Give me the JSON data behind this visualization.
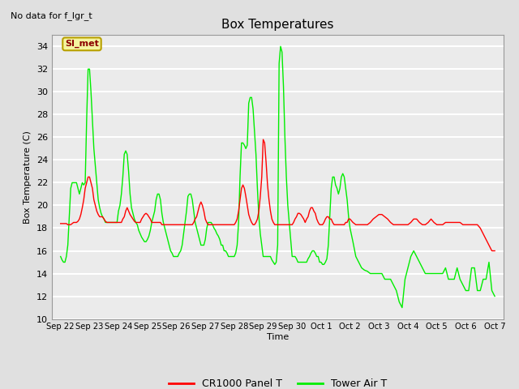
{
  "title": "Box Temperatures",
  "subtitle": "No data for f_lgr_t",
  "xlabel": "Time",
  "ylabel": "Box Temperature (C)",
  "ylim": [
    10,
    35
  ],
  "yticks": [
    10,
    12,
    14,
    16,
    18,
    20,
    22,
    24,
    26,
    28,
    30,
    32,
    34
  ],
  "background_color": "#e0e0e0",
  "plot_bg_color": "#f0f0f0",
  "legend_label1": "CR1000 Panel T",
  "legend_label2": "Tower Air T",
  "legend_color1": "red",
  "legend_color2": "#00ee00",
  "annotation_text": "SI_met",
  "x_tick_labels": [
    "Sep 22",
    "Sep 23",
    "Sep 24",
    "Sep 25",
    "Sep 26",
    "Sep 27",
    "Sep 28",
    "Sep 29",
    "Sep 30",
    "Oct 1",
    "Oct 2",
    "Oct 3",
    "Oct 4",
    "Oct 5",
    "Oct 6",
    "Oct 7"
  ],
  "red_x": [
    0.0,
    0.05,
    0.1,
    0.15,
    0.2,
    0.25,
    0.3,
    0.35,
    0.4,
    0.45,
    0.5,
    0.55,
    0.6,
    0.65,
    0.7,
    0.75,
    0.8,
    0.85,
    0.9,
    0.95,
    1.0,
    1.05,
    1.1,
    1.15,
    1.2,
    1.25,
    1.3,
    1.35,
    1.4,
    1.45,
    1.5,
    1.55,
    1.6,
    1.65,
    1.7,
    1.75,
    1.8,
    1.85,
    1.9,
    1.95,
    2.0,
    2.05,
    2.1,
    2.15,
    2.2,
    2.25,
    2.3,
    2.35,
    2.4,
    2.45,
    2.5,
    2.55,
    2.6,
    2.65,
    2.7,
    2.75,
    2.8,
    2.85,
    2.9,
    2.95,
    3.0,
    3.05,
    3.1,
    3.15,
    3.2,
    3.25,
    3.3,
    3.35,
    3.4,
    3.45,
    3.5,
    3.55,
    3.6,
    3.65,
    3.7,
    3.75,
    3.8,
    3.85,
    3.9,
    3.95,
    4.0,
    4.05,
    4.1,
    4.15,
    4.2,
    4.25,
    4.3,
    4.35,
    4.4,
    4.45,
    4.5,
    4.55,
    4.6,
    4.65,
    4.7,
    4.75,
    4.8,
    4.85,
    4.9,
    4.95,
    5.0,
    5.05,
    5.1,
    5.15,
    5.2,
    5.25,
    5.3,
    5.35,
    5.4,
    5.45,
    5.5,
    5.55,
    5.6,
    5.65,
    5.7,
    5.75,
    5.8,
    5.85,
    5.9,
    5.95,
    6.0,
    6.05,
    6.1,
    6.15,
    6.2,
    6.25,
    6.3,
    6.35,
    6.4,
    6.45,
    6.5,
    6.55,
    6.6,
    6.65,
    6.7,
    6.75,
    6.8,
    6.85,
    6.9,
    6.95,
    7.0,
    7.05,
    7.1,
    7.15,
    7.2,
    7.25,
    7.3,
    7.35,
    7.4,
    7.45,
    7.5,
    7.55,
    7.6,
    7.65,
    7.7,
    7.75,
    7.8,
    7.85,
    7.9,
    7.95,
    8.0,
    8.05,
    8.1,
    8.15,
    8.2,
    8.25,
    8.3,
    8.35,
    8.4,
    8.45,
    8.5,
    8.55,
    8.6,
    8.65,
    8.7,
    8.75,
    8.8,
    8.85,
    8.9,
    8.95,
    9.0,
    9.05,
    9.1,
    9.15,
    9.2,
    9.25,
    9.3,
    9.35,
    9.4,
    9.45,
    9.5,
    9.55,
    9.6,
    9.65,
    9.7,
    9.75,
    9.8,
    9.85,
    9.9,
    9.95,
    10.0,
    10.1,
    10.2,
    10.3,
    10.4,
    10.5,
    10.6,
    10.7,
    10.8,
    10.9,
    11.0,
    11.1,
    11.2,
    11.3,
    11.4,
    11.5,
    11.6,
    11.7,
    11.8,
    11.9,
    12.0,
    12.1,
    12.2,
    12.3,
    12.4,
    12.5,
    12.6,
    12.7,
    12.8,
    12.9,
    13.0,
    13.1,
    13.2,
    13.3,
    13.4,
    13.5,
    13.6,
    13.7,
    13.8,
    13.9,
    14.0,
    14.1,
    14.2,
    14.3,
    14.4,
    14.5,
    14.6,
    14.7,
    14.8,
    14.9,
    15.0
  ],
  "red_y": [
    18.4,
    18.4,
    18.4,
    18.4,
    18.4,
    18.3,
    18.3,
    18.3,
    18.4,
    18.5,
    18.5,
    18.5,
    18.6,
    18.8,
    19.2,
    19.8,
    20.5,
    21.5,
    22.0,
    22.5,
    22.5,
    22.0,
    21.5,
    20.5,
    20.0,
    19.5,
    19.2,
    19.0,
    19.0,
    19.0,
    18.8,
    18.6,
    18.5,
    18.5,
    18.5,
    18.5,
    18.5,
    18.5,
    18.5,
    18.5,
    18.5,
    18.5,
    18.5,
    18.8,
    19.0,
    19.5,
    19.8,
    19.5,
    19.2,
    19.0,
    18.8,
    18.6,
    18.5,
    18.5,
    18.5,
    18.5,
    18.8,
    19.0,
    19.2,
    19.3,
    19.2,
    19.0,
    18.8,
    18.5,
    18.5,
    18.5,
    18.5,
    18.5,
    18.5,
    18.5,
    18.3,
    18.3,
    18.3,
    18.3,
    18.3,
    18.3,
    18.3,
    18.3,
    18.3,
    18.3,
    18.3,
    18.3,
    18.3,
    18.3,
    18.3,
    18.3,
    18.3,
    18.3,
    18.3,
    18.3,
    18.3,
    18.3,
    18.5,
    18.8,
    19.0,
    19.5,
    20.0,
    20.3,
    20.0,
    19.5,
    18.8,
    18.5,
    18.3,
    18.3,
    18.3,
    18.3,
    18.3,
    18.3,
    18.3,
    18.3,
    18.3,
    18.3,
    18.3,
    18.3,
    18.3,
    18.3,
    18.3,
    18.3,
    18.3,
    18.3,
    18.3,
    18.5,
    18.8,
    19.5,
    20.5,
    21.5,
    21.8,
    21.5,
    20.8,
    20.0,
    19.2,
    18.8,
    18.5,
    18.3,
    18.3,
    18.5,
    18.8,
    19.5,
    20.8,
    22.5,
    25.8,
    25.5,
    23.8,
    21.8,
    20.5,
    19.5,
    18.8,
    18.5,
    18.3,
    18.3,
    18.3,
    18.3,
    18.3,
    18.3,
    18.3,
    18.3,
    18.3,
    18.3,
    18.3,
    18.3,
    18.3,
    18.5,
    18.8,
    19.0,
    19.3,
    19.3,
    19.2,
    19.0,
    18.8,
    18.5,
    18.8,
    19.0,
    19.5,
    19.8,
    19.8,
    19.5,
    19.3,
    18.8,
    18.5,
    18.3,
    18.3,
    18.3,
    18.5,
    18.8,
    19.0,
    19.0,
    18.8,
    18.8,
    18.5,
    18.3,
    18.3,
    18.3,
    18.3,
    18.3,
    18.3,
    18.3,
    18.3,
    18.5,
    18.5,
    18.8,
    18.8,
    18.5,
    18.3,
    18.3,
    18.3,
    18.3,
    18.3,
    18.5,
    18.8,
    19.0,
    19.2,
    19.2,
    19.0,
    18.8,
    18.5,
    18.3,
    18.3,
    18.3,
    18.3,
    18.3,
    18.3,
    18.5,
    18.8,
    18.8,
    18.5,
    18.3,
    18.3,
    18.5,
    18.8,
    18.5,
    18.3,
    18.3,
    18.3,
    18.5,
    18.5,
    18.5,
    18.5,
    18.5,
    18.5,
    18.3,
    18.3,
    18.3,
    18.3,
    18.3,
    18.3,
    18.0,
    17.5,
    17.0,
    16.5,
    16.0,
    16.0
  ],
  "green_x": [
    0.0,
    0.05,
    0.1,
    0.15,
    0.2,
    0.25,
    0.3,
    0.35,
    0.4,
    0.45,
    0.5,
    0.55,
    0.6,
    0.65,
    0.7,
    0.75,
    0.8,
    0.85,
    0.9,
    0.95,
    1.0,
    1.05,
    1.1,
    1.15,
    1.2,
    1.25,
    1.3,
    1.35,
    1.4,
    1.45,
    1.5,
    1.55,
    1.6,
    1.65,
    1.7,
    1.75,
    1.8,
    1.85,
    1.9,
    1.95,
    2.0,
    2.05,
    2.1,
    2.15,
    2.2,
    2.25,
    2.3,
    2.35,
    2.4,
    2.45,
    2.5,
    2.55,
    2.6,
    2.65,
    2.7,
    2.75,
    2.8,
    2.85,
    2.9,
    2.95,
    3.0,
    3.05,
    3.1,
    3.15,
    3.2,
    3.25,
    3.3,
    3.35,
    3.4,
    3.45,
    3.5,
    3.55,
    3.6,
    3.65,
    3.7,
    3.75,
    3.8,
    3.85,
    3.9,
    3.95,
    4.0,
    4.05,
    4.1,
    4.15,
    4.2,
    4.25,
    4.3,
    4.35,
    4.4,
    4.45,
    4.5,
    4.55,
    4.6,
    4.65,
    4.7,
    4.75,
    4.8,
    4.85,
    4.9,
    4.95,
    5.0,
    5.05,
    5.1,
    5.15,
    5.2,
    5.25,
    5.3,
    5.35,
    5.4,
    5.45,
    5.5,
    5.55,
    5.6,
    5.65,
    5.7,
    5.75,
    5.8,
    5.85,
    5.9,
    5.95,
    6.0,
    6.05,
    6.1,
    6.15,
    6.2,
    6.25,
    6.3,
    6.35,
    6.4,
    6.45,
    6.5,
    6.55,
    6.6,
    6.65,
    6.7,
    6.75,
    6.8,
    6.85,
    6.9,
    6.95,
    7.0,
    7.05,
    7.1,
    7.15,
    7.2,
    7.25,
    7.3,
    7.35,
    7.4,
    7.45,
    7.5,
    7.55,
    7.6,
    7.65,
    7.7,
    7.75,
    7.8,
    7.85,
    7.9,
    7.95,
    8.0,
    8.05,
    8.1,
    8.15,
    8.2,
    8.25,
    8.3,
    8.35,
    8.4,
    8.45,
    8.5,
    8.55,
    8.6,
    8.65,
    8.7,
    8.75,
    8.8,
    8.85,
    8.9,
    8.95,
    9.0,
    9.05,
    9.1,
    9.15,
    9.2,
    9.25,
    9.3,
    9.35,
    9.4,
    9.45,
    9.5,
    9.55,
    9.6,
    9.65,
    9.7,
    9.75,
    9.8,
    9.85,
    9.9,
    9.95,
    10.0,
    10.1,
    10.2,
    10.3,
    10.4,
    10.5,
    10.6,
    10.7,
    10.8,
    10.9,
    11.0,
    11.1,
    11.2,
    11.3,
    11.4,
    11.5,
    11.6,
    11.7,
    11.8,
    11.9,
    12.0,
    12.1,
    12.2,
    12.3,
    12.4,
    12.5,
    12.6,
    12.7,
    12.8,
    12.9,
    13.0,
    13.1,
    13.2,
    13.3,
    13.4,
    13.5,
    13.6,
    13.7,
    13.8,
    13.9,
    14.0,
    14.1,
    14.2,
    14.3,
    14.4,
    14.5,
    14.6,
    14.7,
    14.8,
    14.9,
    15.0
  ],
  "green_y": [
    15.5,
    15.2,
    15.0,
    15.0,
    15.5,
    16.5,
    19.0,
    21.5,
    22.0,
    22.0,
    22.0,
    22.0,
    21.5,
    21.0,
    21.5,
    22.0,
    21.8,
    22.0,
    27.5,
    32.0,
    32.0,
    30.0,
    27.5,
    25.0,
    23.5,
    22.0,
    20.5,
    19.8,
    19.3,
    19.0,
    18.8,
    18.5,
    18.5,
    18.5,
    18.5,
    18.5,
    18.5,
    18.5,
    18.5,
    18.5,
    19.5,
    20.0,
    21.0,
    22.5,
    24.5,
    24.8,
    24.5,
    23.0,
    21.0,
    19.8,
    19.3,
    18.8,
    18.5,
    18.3,
    17.8,
    17.5,
    17.2,
    17.0,
    16.8,
    16.8,
    17.0,
    17.3,
    17.8,
    18.5,
    19.0,
    19.5,
    20.5,
    21.0,
    21.0,
    20.5,
    19.3,
    18.5,
    18.0,
    17.5,
    17.0,
    16.5,
    16.0,
    15.8,
    15.5,
    15.5,
    15.5,
    15.5,
    15.8,
    16.0,
    16.5,
    17.5,
    18.5,
    19.5,
    20.8,
    21.0,
    21.0,
    20.5,
    19.5,
    18.5,
    18.0,
    17.5,
    17.0,
    16.5,
    16.5,
    16.5,
    17.0,
    18.0,
    18.5,
    18.5,
    18.5,
    18.3,
    18.0,
    17.8,
    17.5,
    17.3,
    17.0,
    16.5,
    16.5,
    16.0,
    16.0,
    15.8,
    15.5,
    15.5,
    15.5,
    15.5,
    15.5,
    15.8,
    16.5,
    18.5,
    22.5,
    25.5,
    25.5,
    25.3,
    25.0,
    25.3,
    29.0,
    29.5,
    29.5,
    28.5,
    26.5,
    24.5,
    21.5,
    19.0,
    17.5,
    16.5,
    15.5,
    15.5,
    15.5,
    15.5,
    15.5,
    15.5,
    15.2,
    15.0,
    14.8,
    15.0,
    16.5,
    32.5,
    34.0,
    33.5,
    30.5,
    26.0,
    22.5,
    20.0,
    18.5,
    17.0,
    15.5,
    15.5,
    15.5,
    15.3,
    15.0,
    15.0,
    15.0,
    15.0,
    15.0,
    15.0,
    15.0,
    15.3,
    15.5,
    15.8,
    16.0,
    16.0,
    15.8,
    15.5,
    15.5,
    15.0,
    15.0,
    14.8,
    14.8,
    15.0,
    15.3,
    16.5,
    19.0,
    21.5,
    22.5,
    22.5,
    21.8,
    21.5,
    21.0,
    21.5,
    22.5,
    22.8,
    22.5,
    21.5,
    20.5,
    19.0,
    18.0,
    16.8,
    15.5,
    15.0,
    14.5,
    14.3,
    14.2,
    14.0,
    14.0,
    14.0,
    14.0,
    14.0,
    13.5,
    13.5,
    13.5,
    13.0,
    12.5,
    11.5,
    11.0,
    13.5,
    14.5,
    15.5,
    16.0,
    15.5,
    15.0,
    14.5,
    14.0,
    14.0,
    14.0,
    14.0,
    14.0,
    14.0,
    14.0,
    14.5,
    13.5,
    13.5,
    13.5,
    14.5,
    13.5,
    13.0,
    12.5,
    12.5,
    14.5,
    14.5,
    12.5,
    12.5,
    13.5,
    13.5,
    15.0,
    12.5,
    12.0
  ]
}
